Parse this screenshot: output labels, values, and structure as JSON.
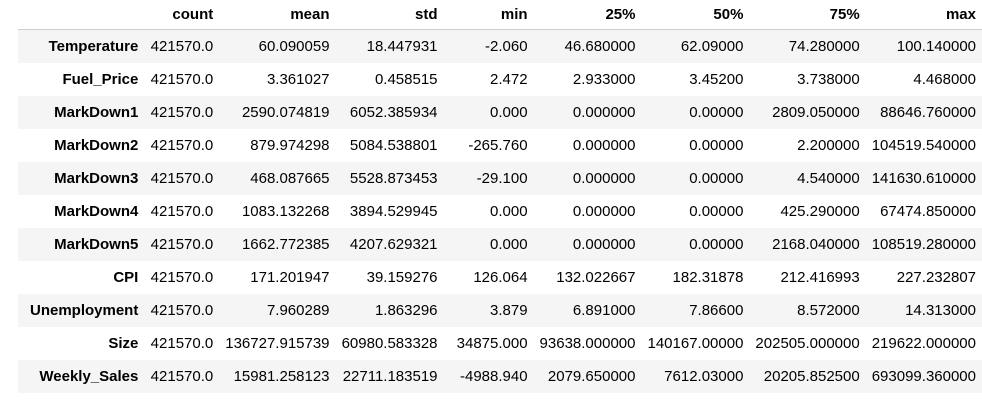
{
  "table": {
    "columns": [
      "count",
      "mean",
      "std",
      "min",
      "25%",
      "50%",
      "75%",
      "max"
    ],
    "rows": [
      {
        "label": "Temperature",
        "values": [
          "421570.0",
          "60.090059",
          "18.447931",
          "-2.060",
          "46.680000",
          "62.09000",
          "74.280000",
          "100.140000"
        ]
      },
      {
        "label": "Fuel_Price",
        "values": [
          "421570.0",
          "3.361027",
          "0.458515",
          "2.472",
          "2.933000",
          "3.45200",
          "3.738000",
          "4.468000"
        ]
      },
      {
        "label": "MarkDown1",
        "values": [
          "421570.0",
          "2590.074819",
          "6052.385934",
          "0.000",
          "0.000000",
          "0.00000",
          "2809.050000",
          "88646.760000"
        ]
      },
      {
        "label": "MarkDown2",
        "values": [
          "421570.0",
          "879.974298",
          "5084.538801",
          "-265.760",
          "0.000000",
          "0.00000",
          "2.200000",
          "104519.540000"
        ]
      },
      {
        "label": "MarkDown3",
        "values": [
          "421570.0",
          "468.087665",
          "5528.873453",
          "-29.100",
          "0.000000",
          "0.00000",
          "4.540000",
          "141630.610000"
        ]
      },
      {
        "label": "MarkDown4",
        "values": [
          "421570.0",
          "1083.132268",
          "3894.529945",
          "0.000",
          "0.000000",
          "0.00000",
          "425.290000",
          "67474.850000"
        ]
      },
      {
        "label": "MarkDown5",
        "values": [
          "421570.0",
          "1662.772385",
          "4207.629321",
          "0.000",
          "0.000000",
          "0.00000",
          "2168.040000",
          "108519.280000"
        ]
      },
      {
        "label": "CPI",
        "values": [
          "421570.0",
          "171.201947",
          "39.159276",
          "126.064",
          "132.022667",
          "182.31878",
          "212.416993",
          "227.232807"
        ]
      },
      {
        "label": "Unemployment",
        "values": [
          "421570.0",
          "7.960289",
          "1.863296",
          "3.879",
          "6.891000",
          "7.86600",
          "8.572000",
          "14.313000"
        ]
      },
      {
        "label": "Size",
        "values": [
          "421570.0",
          "136727.915739",
          "60980.583328",
          "34875.000",
          "93638.000000",
          "140167.00000",
          "202505.000000",
          "219622.000000"
        ]
      },
      {
        "label": "Weekly_Sales",
        "values": [
          "421570.0",
          "15981.258123",
          "22711.183519",
          "-4988.940",
          "2079.650000",
          "7612.03000",
          "20205.852500",
          "693099.360000"
        ]
      }
    ]
  }
}
